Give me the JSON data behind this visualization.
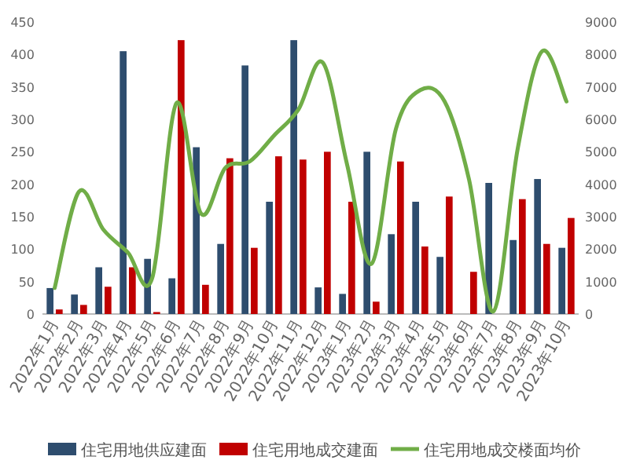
{
  "chart_data": {
    "type": "bar",
    "categories": [
      "2022年1月",
      "2022年2月",
      "2022年3月",
      "2022年4月",
      "2022年5月",
      "2022年6月",
      "2022年7月",
      "2022年8月",
      "2022年9月",
      "2022年10月",
      "2022年11月",
      "2022年12月",
      "2023年1月",
      "2023年2月",
      "2023年3月",
      "2023年4月",
      "2023年5月",
      "2023年6月",
      "2023年7月",
      "2023年8月",
      "2023年9月",
      "2023年10月"
    ],
    "series": [
      {
        "name": "住宅用地供应建面",
        "color": "#2e4d6e",
        "values": [
          40,
          30,
          72,
          405,
          85,
          55,
          257,
          108,
          383,
          173,
          422,
          41,
          31,
          250,
          123,
          173,
          88,
          0,
          202,
          114,
          208,
          102
        ]
      },
      {
        "name": "住宅用地成交建面",
        "color": "#c00000",
        "values": [
          7,
          14,
          42,
          72,
          3,
          422,
          45,
          240,
          102,
          243,
          238,
          250,
          173,
          19,
          235,
          104,
          181,
          65,
          0,
          177,
          108,
          148
        ]
      },
      {
        "name": "住宅用地成交楼面均价",
        "color": "#70ad47",
        "type": "line",
        "axis": "y2",
        "values": [
          800,
          3770,
          2600,
          1900,
          1100,
          6500,
          3100,
          4500,
          4700,
          5500,
          6300,
          7750,
          4600,
          1550,
          5700,
          6900,
          6550,
          4150,
          80,
          5100,
          8100,
          6550
        ]
      }
    ],
    "ylim": [
      0,
      450
    ],
    "yticks": [
      0,
      50,
      100,
      150,
      200,
      250,
      300,
      350,
      400,
      450
    ],
    "y2lim": [
      0,
      9000
    ],
    "y2ticks": [
      0,
      1000,
      2000,
      3000,
      4000,
      5000,
      6000,
      7000,
      8000,
      9000
    ],
    "legend": "bottom",
    "grid": false
  }
}
